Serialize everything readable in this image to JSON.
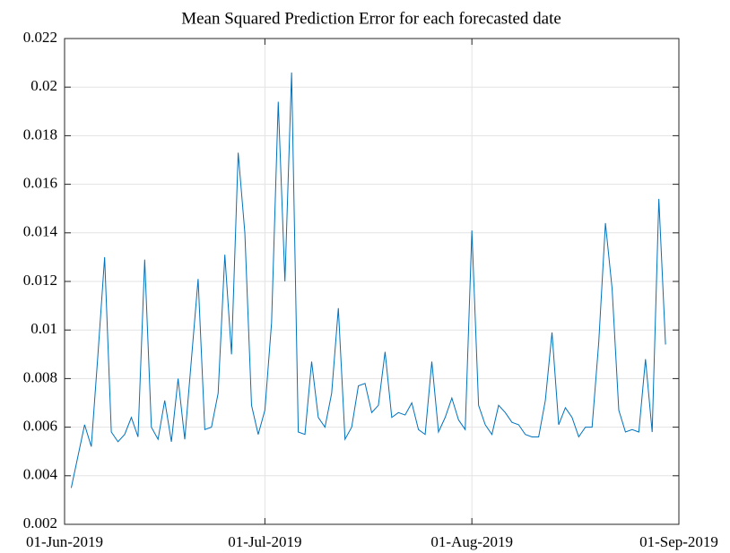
{
  "chart_data": {
    "type": "line",
    "title": "Mean Squared Prediction Error for each forecasted date",
    "x": [
      "2019-06-02",
      "2019-06-03",
      "2019-06-04",
      "2019-06-05",
      "2019-06-06",
      "2019-06-07",
      "2019-06-08",
      "2019-06-09",
      "2019-06-10",
      "2019-06-11",
      "2019-06-12",
      "2019-06-13",
      "2019-06-14",
      "2019-06-15",
      "2019-06-16",
      "2019-06-17",
      "2019-06-18",
      "2019-06-19",
      "2019-06-20",
      "2019-06-21",
      "2019-06-22",
      "2019-06-23",
      "2019-06-24",
      "2019-06-25",
      "2019-06-26",
      "2019-06-27",
      "2019-06-28",
      "2019-06-29",
      "2019-06-30",
      "2019-07-01",
      "2019-07-02",
      "2019-07-03",
      "2019-07-04",
      "2019-07-05",
      "2019-07-06",
      "2019-07-07",
      "2019-07-08",
      "2019-07-09",
      "2019-07-10",
      "2019-07-11",
      "2019-07-12",
      "2019-07-13",
      "2019-07-14",
      "2019-07-15",
      "2019-07-16",
      "2019-07-17",
      "2019-07-18",
      "2019-07-19",
      "2019-07-20",
      "2019-07-21",
      "2019-07-22",
      "2019-07-23",
      "2019-07-24",
      "2019-07-25",
      "2019-07-26",
      "2019-07-27",
      "2019-07-28",
      "2019-07-29",
      "2019-07-30",
      "2019-07-31",
      "2019-08-01",
      "2019-08-02",
      "2019-08-03",
      "2019-08-04",
      "2019-08-05",
      "2019-08-06",
      "2019-08-07",
      "2019-08-08",
      "2019-08-09",
      "2019-08-10",
      "2019-08-11",
      "2019-08-12",
      "2019-08-13",
      "2019-08-14",
      "2019-08-15",
      "2019-08-16",
      "2019-08-17",
      "2019-08-18",
      "2019-08-19",
      "2019-08-20",
      "2019-08-21",
      "2019-08-22",
      "2019-08-23",
      "2019-08-24",
      "2019-08-25",
      "2019-08-26",
      "2019-08-27",
      "2019-08-28",
      "2019-08-29",
      "2019-08-30"
    ],
    "values": [
      0.0035,
      0.0048,
      0.0061,
      0.0052,
      0.009,
      0.013,
      0.0058,
      0.0054,
      0.0057,
      0.0064,
      0.0056,
      0.0129,
      0.006,
      0.0055,
      0.0071,
      0.0054,
      0.008,
      0.0055,
      0.0088,
      0.0121,
      0.0059,
      0.006,
      0.0074,
      0.0131,
      0.009,
      0.0173,
      0.014,
      0.0069,
      0.0057,
      0.0067,
      0.0103,
      0.0194,
      0.012,
      0.0206,
      0.0058,
      0.0057,
      0.0087,
      0.0064,
      0.006,
      0.0074,
      0.0109,
      0.0055,
      0.006,
      0.0077,
      0.0078,
      0.0066,
      0.0069,
      0.0091,
      0.0064,
      0.0066,
      0.0065,
      0.007,
      0.0059,
      0.0057,
      0.0087,
      0.0058,
      0.0064,
      0.0072,
      0.0063,
      0.0059,
      0.0141,
      0.0069,
      0.0061,
      0.0057,
      0.0069,
      0.0066,
      0.0062,
      0.0061,
      0.0057,
      0.0056,
      0.0056,
      0.0071,
      0.0099,
      0.0061,
      0.0068,
      0.0064,
      0.0056,
      0.006,
      0.006,
      0.0095,
      0.0144,
      0.0117,
      0.0067,
      0.0058,
      0.0059,
      0.0058,
      0.0088,
      0.0058,
      0.0154,
      0.0094
    ],
    "color": "#0072bd",
    "xlim": [
      "2019-06-01",
      "2019-09-01"
    ],
    "xticks": [
      {
        "value": "2019-06-01",
        "label": "01-Jun-2019"
      },
      {
        "value": "2019-07-01",
        "label": "01-Jul-2019"
      },
      {
        "value": "2019-08-01",
        "label": "01-Aug-2019"
      },
      {
        "value": "2019-09-01",
        "label": "01-Sep-2019"
      }
    ],
    "ylim": [
      0.002,
      0.022
    ],
    "yticks": [
      0.002,
      0.004,
      0.006,
      0.008,
      0.01,
      0.012,
      0.014,
      0.016,
      0.018,
      0.02,
      0.022
    ],
    "grid": true
  }
}
